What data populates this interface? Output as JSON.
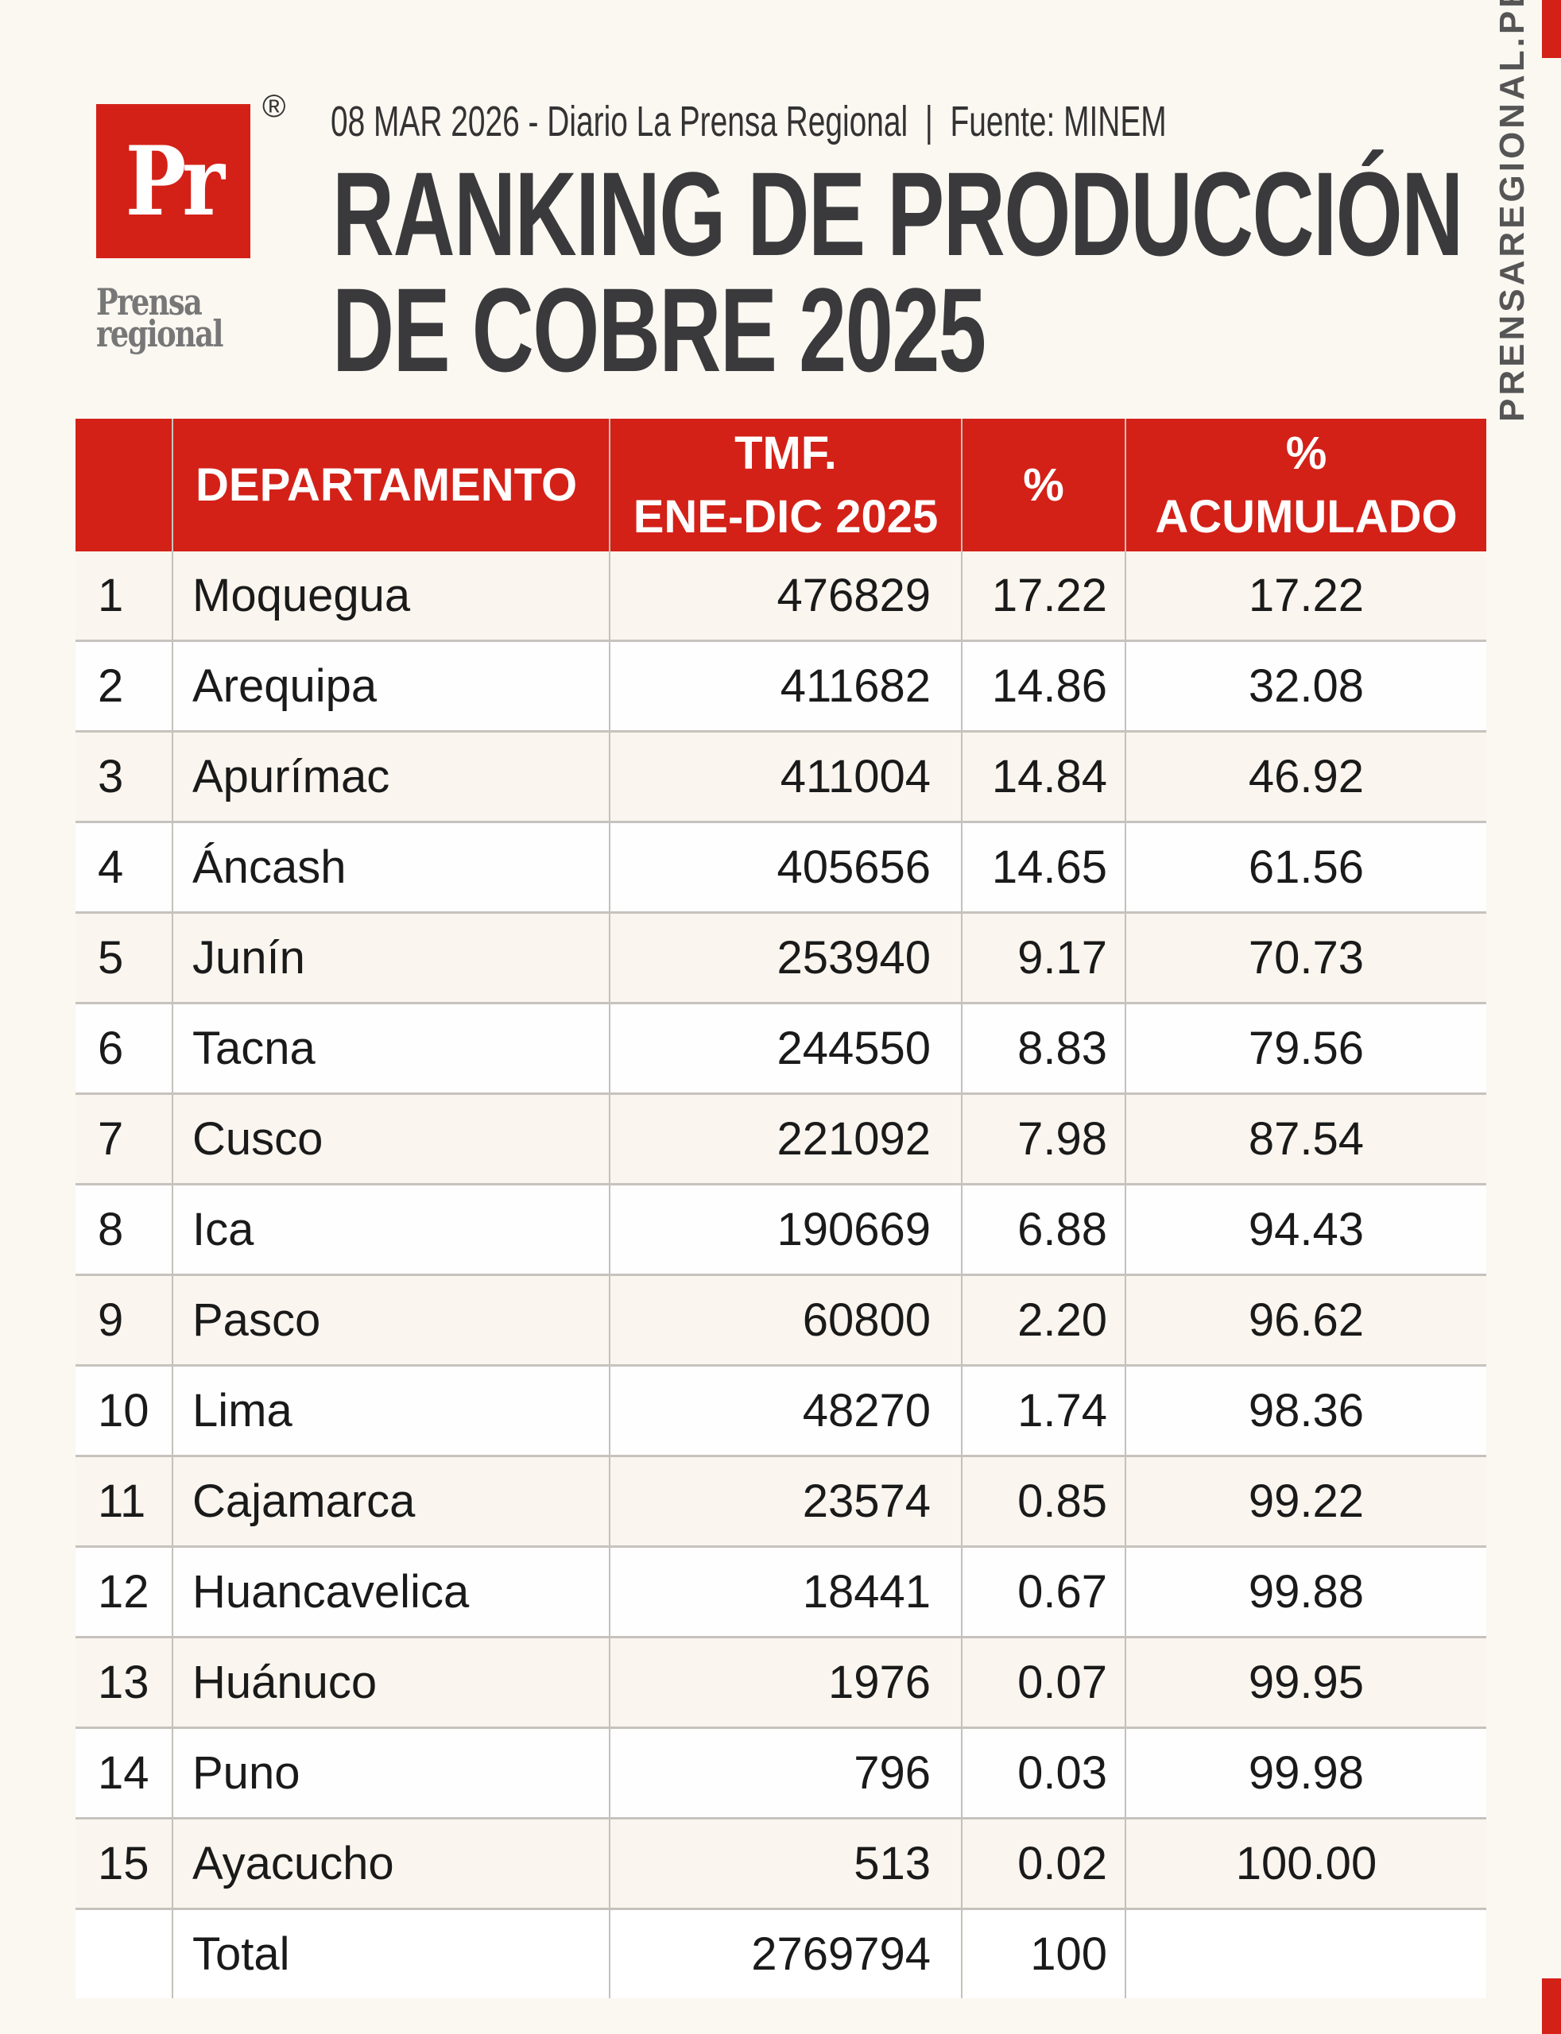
{
  "brand": {
    "logo_mark": "Pr",
    "registered": "®",
    "logo_text": "Prensa regional",
    "side_text": "PRENSAREGIONAL.PE",
    "accent": "#d32118"
  },
  "header": {
    "dateline": "08 MAR 2026 - Diario La Prensa Regional  |  Fuente: MINEM",
    "title_line1": "RANKING DE PRODUCCIÓN",
    "title_line2": "DE COBRE 2025"
  },
  "table": {
    "columns": [
      "",
      "DEPARTAMENTO",
      "TMF.",
      "ENE-DIC 2025",
      "%",
      "%",
      "ACUMULADO"
    ],
    "rows": [
      [
        "1",
        "Moquegua",
        "476829",
        "17.22",
        "17.22"
      ],
      [
        "2",
        "Arequipa",
        "411682",
        "14.86",
        "32.08"
      ],
      [
        "3",
        "Apurímac",
        "411004",
        "14.84",
        "46.92"
      ],
      [
        "4",
        "Áncash",
        "405656",
        "14.65",
        "61.56"
      ],
      [
        "5",
        "Junín",
        "253940",
        "9.17",
        "70.73"
      ],
      [
        "6",
        "Tacna",
        "244550",
        "8.83",
        "79.56"
      ],
      [
        "7",
        "Cusco",
        "221092",
        "7.98",
        "87.54"
      ],
      [
        "8",
        "Ica",
        "190669",
        "6.88",
        "94.43"
      ],
      [
        "9",
        "Pasco",
        "60800",
        "2.20",
        "96.62"
      ],
      [
        "10",
        "Lima",
        "48270",
        "1.74",
        "98.36"
      ],
      [
        "11",
        "Cajamarca",
        "23574",
        "0.85",
        "99.22"
      ],
      [
        "12",
        "Huancavelica",
        "18441",
        "0.67",
        "99.88"
      ],
      [
        "13",
        "Huánuco",
        "1976",
        "0.07",
        "99.95"
      ],
      [
        "14",
        "Puno",
        "796",
        "0.03",
        "99.98"
      ],
      [
        "15",
        "Ayacucho",
        "513",
        "0.02",
        "100.00"
      ]
    ],
    "total": {
      "label": "Total",
      "tmf": "2769794",
      "pct": "100"
    }
  }
}
